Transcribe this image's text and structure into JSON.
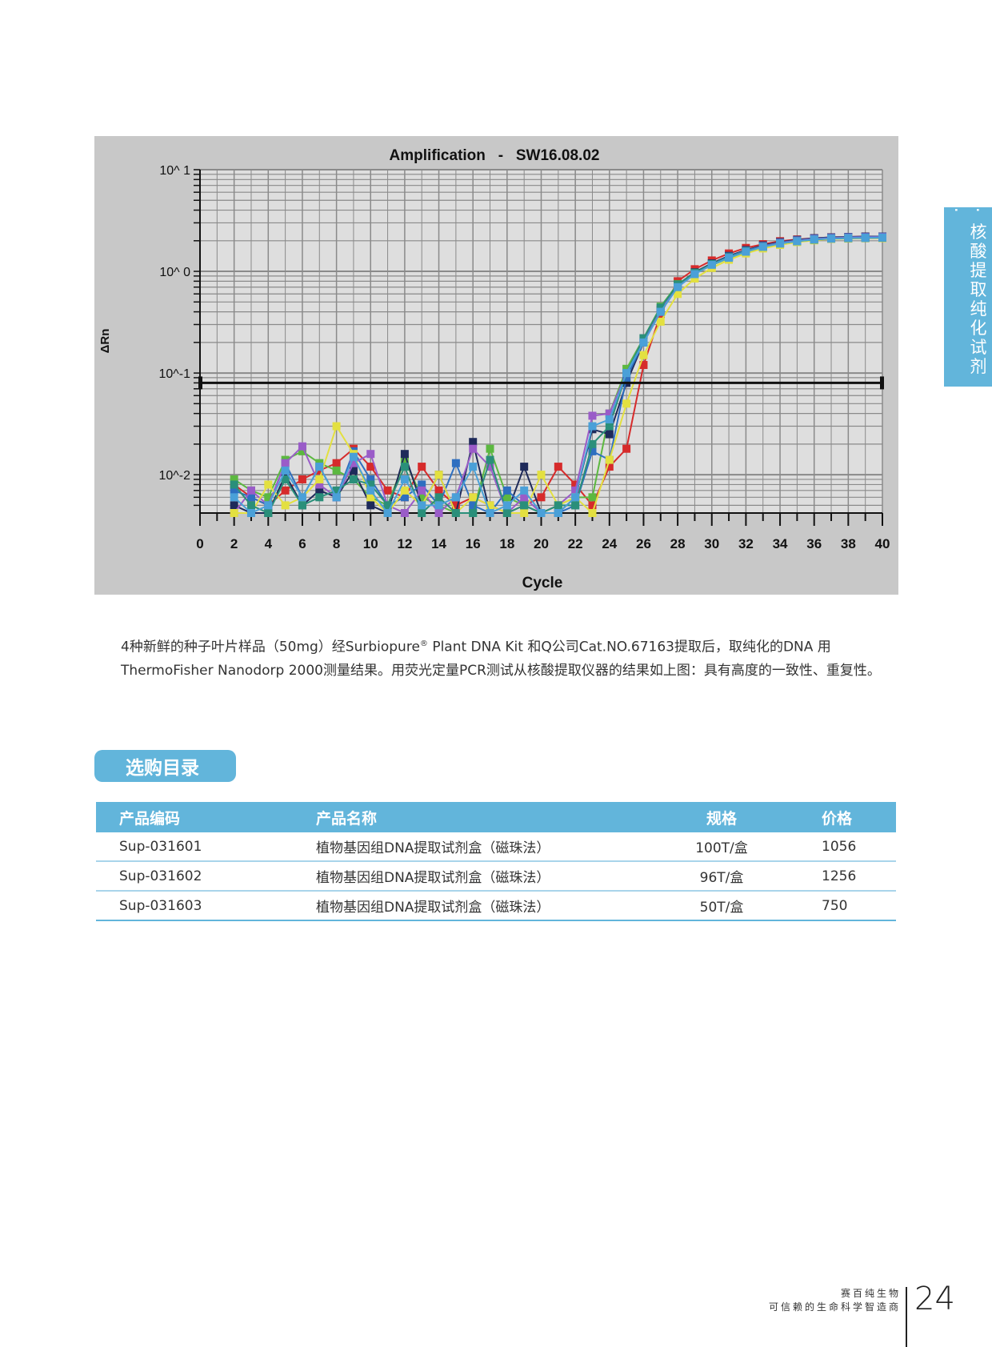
{
  "side_tab": {
    "label": "· 核酸提取纯化试剂 ·"
  },
  "chart_data": {
    "type": "line",
    "title": "Amplification   -   SW16.08.02",
    "xlabel": "Cycle",
    "ylabel": "ΔRn",
    "y_scale": "log",
    "xlim": [
      0,
      40
    ],
    "ylim": [
      0.0042,
      10
    ],
    "x_ticks": [
      "0",
      "2",
      "4",
      "6",
      "8",
      "10",
      "12",
      "14",
      "16",
      "18",
      "20",
      "22",
      "24",
      "26",
      "28",
      "30",
      "32",
      "34",
      "36",
      "38",
      "40"
    ],
    "y_ticks": [
      {
        "value": 10,
        "label": "10^ 1"
      },
      {
        "value": 1,
        "label": "10^ 0"
      },
      {
        "value": 0.1,
        "label": "10^-1"
      },
      {
        "value": 0.01,
        "label": "10^-2"
      }
    ],
    "grid": true,
    "threshold": 0.08,
    "x_start": 2,
    "series": [
      {
        "color": "#d62b2b",
        "values": [
          0.008,
          0.006,
          0.005,
          0.007,
          0.009,
          0.011,
          0.013,
          0.018,
          0.012,
          0.007,
          0.006,
          0.012,
          0.007,
          0.005,
          0.006,
          0.005,
          0.004,
          0.005,
          0.006,
          0.012,
          0.008,
          0.005,
          0.012,
          0.018,
          0.12,
          0.38,
          0.8,
          1.05,
          1.28,
          1.5,
          1.7,
          1.85,
          1.98,
          2.06,
          2.12,
          2.16,
          2.18,
          2.2,
          2.2
        ]
      },
      {
        "color": "#5cb840",
        "values": [
          0.009,
          0.007,
          0.006,
          0.014,
          0.017,
          0.013,
          0.011,
          0.009,
          0.006,
          0.005,
          0.014,
          0.006,
          0.005,
          0.004,
          0.004,
          0.018,
          0.006,
          0.005,
          0.004,
          0.005,
          0.006,
          0.006,
          0.04,
          0.11,
          0.22,
          0.45,
          0.75,
          0.95,
          1.15,
          1.35,
          1.55,
          1.72,
          1.86,
          1.96,
          2.04,
          2.1,
          2.13,
          2.14,
          2.15
        ]
      },
      {
        "color": "#1e2a5a",
        "values": [
          0.005,
          0.004,
          0.004,
          0.01,
          0.005,
          0.007,
          0.006,
          0.011,
          0.005,
          0.004,
          0.016,
          0.005,
          0.01,
          0.004,
          0.021,
          0.004,
          0.004,
          0.012,
          0.004,
          0.004,
          0.006,
          0.028,
          0.025,
          0.08,
          0.2,
          0.42,
          0.74,
          0.98,
          1.2,
          1.42,
          1.62,
          1.8,
          1.94,
          2.04,
          2.12,
          2.16,
          2.18,
          2.2,
          2.2
        ]
      },
      {
        "color": "#2e6fc0",
        "values": [
          0.007,
          0.006,
          0.005,
          0.013,
          0.006,
          0.012,
          0.006,
          0.017,
          0.009,
          0.005,
          0.006,
          0.008,
          0.005,
          0.013,
          0.005,
          0.004,
          0.007,
          0.005,
          0.004,
          0.004,
          0.005,
          0.017,
          0.014,
          0.09,
          0.2,
          0.4,
          0.7,
          0.95,
          1.18,
          1.4,
          1.6,
          1.78,
          1.92,
          2.02,
          2.1,
          2.14,
          2.17,
          2.18,
          2.19
        ]
      },
      {
        "color": "#9a5cc8",
        "values": [
          0.004,
          0.007,
          0.005,
          0.013,
          0.019,
          0.008,
          0.006,
          0.013,
          0.016,
          0.005,
          0.004,
          0.007,
          0.004,
          0.006,
          0.018,
          0.012,
          0.004,
          0.006,
          0.004,
          0.005,
          0.007,
          0.038,
          0.04,
          0.1,
          0.22,
          0.42,
          0.72,
          0.96,
          1.18,
          1.38,
          1.58,
          1.76,
          1.9,
          2.0,
          2.08,
          2.12,
          2.15,
          2.16,
          2.17
        ]
      },
      {
        "color": "#e3e040",
        "values": [
          0.004,
          0.004,
          0.008,
          0.005,
          0.006,
          0.009,
          0.03,
          0.016,
          0.006,
          0.004,
          0.007,
          0.005,
          0.01,
          0.004,
          0.006,
          0.005,
          0.004,
          0.004,
          0.01,
          0.005,
          0.006,
          0.004,
          0.014,
          0.05,
          0.15,
          0.32,
          0.6,
          0.85,
          1.08,
          1.3,
          1.5,
          1.68,
          1.82,
          1.94,
          2.02,
          2.08,
          2.1,
          2.12,
          2.12
        ]
      },
      {
        "color": "#2a8f7a",
        "values": [
          0.008,
          0.005,
          0.004,
          0.009,
          0.005,
          0.006,
          0.007,
          0.009,
          0.008,
          0.005,
          0.012,
          0.004,
          0.006,
          0.004,
          0.004,
          0.014,
          0.004,
          0.005,
          0.004,
          0.005,
          0.005,
          0.02,
          0.03,
          0.1,
          0.22,
          0.44,
          0.74,
          0.97,
          1.18,
          1.38,
          1.58,
          1.75,
          1.88,
          1.98,
          2.05,
          2.1,
          2.12,
          2.13,
          2.14
        ]
      },
      {
        "color": "#4aa0d8",
        "values": [
          0.006,
          0.004,
          0.005,
          0.011,
          0.006,
          0.012,
          0.006,
          0.015,
          0.007,
          0.004,
          0.009,
          0.005,
          0.005,
          0.006,
          0.012,
          0.004,
          0.005,
          0.007,
          0.004,
          0.004,
          0.006,
          0.03,
          0.035,
          0.1,
          0.2,
          0.4,
          0.7,
          0.94,
          1.16,
          1.36,
          1.56,
          1.74,
          1.88,
          1.98,
          2.06,
          2.1,
          2.13,
          2.14,
          2.15
        ]
      }
    ]
  },
  "description": {
    "part1": "4种新鲜的种子叶片样品（50mg）经Surbiopure",
    "reg": "®",
    "part2": " Plant DNA Kit 和Q公司Cat.NO.67163提取后，取纯化的DNA 用ThermoFisher Nanodorp 2000测量结果。用荧光定量PCR测试从核酸提取仪器的结果如上图：具有高度的一致性、重复性。"
  },
  "catalog": {
    "button_label": "选购目录",
    "headers": [
      "产品编码",
      "产品名称",
      "规格",
      "价格"
    ],
    "rows": [
      [
        "Sup-031601",
        "植物基因组DNA提取试剂盒（磁珠法）",
        "100T/盒",
        "1056"
      ],
      [
        "Sup-031602",
        "植物基因组DNA提取试剂盒（磁珠法）",
        "96T/盒",
        "1256"
      ],
      [
        "Sup-031603",
        "植物基因组DNA提取试剂盒（磁珠法）",
        "50T/盒",
        "750"
      ]
    ]
  },
  "footer": {
    "company": "赛百纯生物",
    "slogan": "可信赖的生命科学智造商",
    "page_number": "24"
  },
  "colors": {
    "accent": "#62b5db",
    "chart_bg": "#c8c8c8",
    "plot_bg": "#dedede"
  }
}
